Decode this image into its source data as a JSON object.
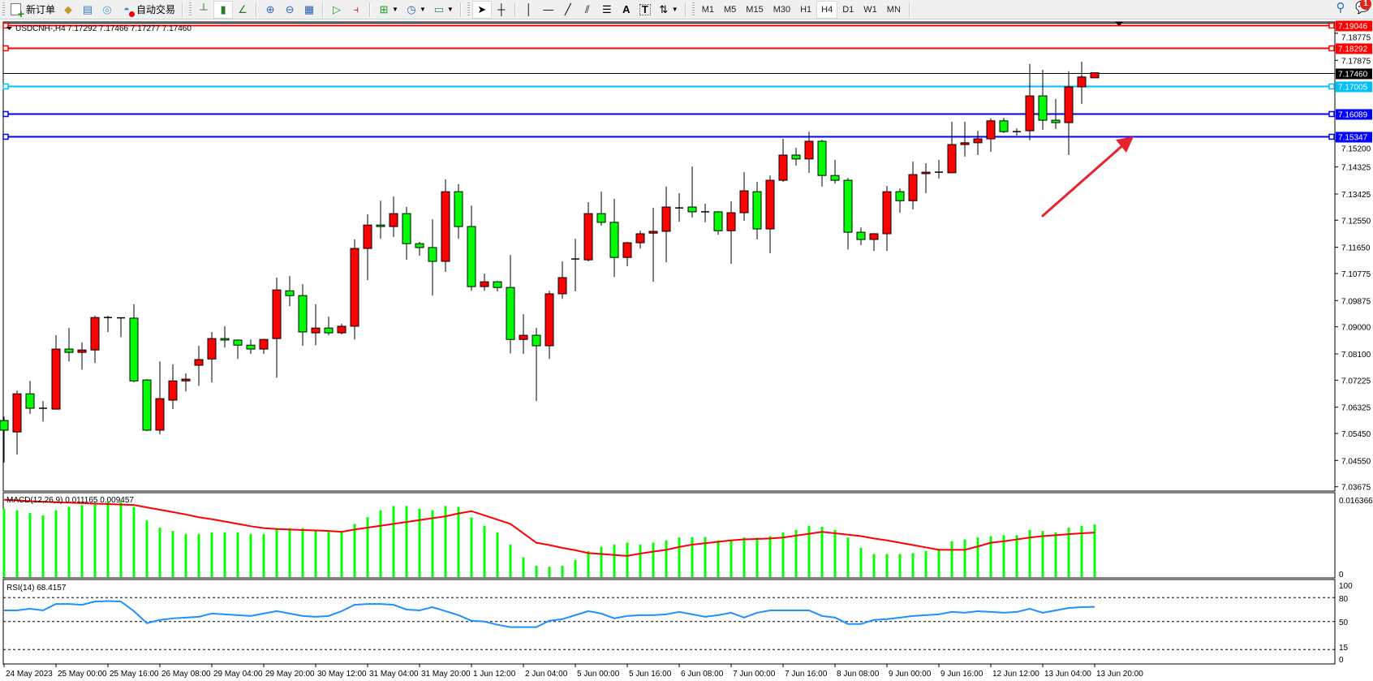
{
  "toolbar": {
    "new_order_label": "新订单",
    "autotrading_label": "自动交易",
    "timeframes": [
      "M1",
      "M5",
      "M15",
      "M30",
      "H1",
      "H4",
      "D1",
      "W1",
      "MN"
    ],
    "active_timeframe": "H4",
    "notification_count": "1"
  },
  "chart": {
    "symbol_header": "USDCNH-,H4",
    "ohlc_header": "7.17292 7.17466 7.17277 7.17460",
    "colors": {
      "bull": "#ff0000",
      "bear": "#00ff00",
      "bid_line": "#000000"
    },
    "price_ticks": [
      "7.18775",
      "7.17875",
      "7.15200",
      "7.14325",
      "7.13425",
      "7.12550",
      "7.11650",
      "7.10775",
      "7.09875",
      "7.09000",
      "7.08100",
      "7.07225",
      "7.06325",
      "7.05450",
      "7.04550",
      "7.03675"
    ],
    "hlines": [
      {
        "price": "7.19046",
        "color": "#ff0000"
      },
      {
        "price": "7.18292",
        "color": "#ff0000"
      },
      {
        "price": "7.17460",
        "color": "#000000"
      },
      {
        "price": "7.17005",
        "color": "#00bfff"
      },
      {
        "price": "7.16089",
        "color": "#0000ff"
      },
      {
        "price": "7.15347",
        "color": "#0000ff"
      }
    ],
    "annotation_arrow": {
      "color": "#e8222a",
      "from_price": 7.1435,
      "to_price": 7.1534
    },
    "time_labels": [
      "24 May 2023",
      "25 May 00:00",
      "25 May 16:00",
      "26 May 08:00",
      "29 May 04:00",
      "29 May 20:00",
      "30 May 12:00",
      "31 May 04:00",
      "31 May 20:00",
      "1 Jun 12:00",
      "2 Jun 04:00",
      "5 Jun 00:00",
      "5 Jun 16:00",
      "6 Jun 08:00",
      "7 Jun 00:00",
      "7 Jun 16:00",
      "8 Jun 08:00",
      "9 Jun 00:00",
      "9 Jun 16:00",
      "12 Jun 12:00",
      "13 Jun 04:00",
      "13 Jun 20:00"
    ]
  },
  "macd": {
    "label": "MACD(12,26,9) 0.011165 0.009457",
    "axis_max": "0.016366",
    "axis_zero": "0"
  },
  "rsi": {
    "label": "RSI(14) 68.4157",
    "levels": [
      "100",
      "80",
      "50",
      "15",
      "0"
    ]
  },
  "chart_data": [
    {
      "type": "candlestick",
      "title": "USDCNH-,H4",
      "ylim": [
        7.03675,
        7.19046
      ],
      "ohlc": [
        [
          7.0588,
          7.0601,
          7.0448,
          7.0556
        ],
        [
          7.055,
          7.0688,
          7.0475,
          7.0677
        ],
        [
          7.0677,
          7.072,
          7.061,
          7.0629
        ],
        [
          7.0629,
          7.0653,
          7.0585,
          7.0628
        ],
        [
          7.0626,
          7.0872,
          7.0626,
          7.0826
        ],
        [
          7.0826,
          7.0896,
          7.0785,
          7.0815
        ],
        [
          7.0815,
          7.0848,
          7.0758,
          7.0823
        ],
        [
          7.0823,
          7.0937,
          7.078,
          7.0931
        ],
        [
          7.0931,
          7.0937,
          7.0883,
          7.0931
        ],
        [
          7.093,
          7.0931,
          7.0866,
          7.0929
        ],
        [
          7.0929,
          7.0975,
          7.0715,
          7.072
        ],
        [
          7.0723,
          7.0726,
          7.0553,
          7.0556
        ],
        [
          7.0556,
          7.0785,
          7.0542,
          7.0661
        ],
        [
          7.0656,
          7.0775,
          7.0626,
          7.072
        ],
        [
          7.072,
          7.0745,
          7.0685,
          7.0726
        ],
        [
          7.0772,
          7.0837,
          7.0704,
          7.0791
        ],
        [
          7.0793,
          7.0883,
          7.0715,
          7.0861
        ],
        [
          7.0861,
          7.0902,
          7.0831,
          7.0856
        ],
        [
          7.0856,
          7.0858,
          7.0793,
          7.0839
        ],
        [
          7.0839,
          7.0858,
          7.081,
          7.0826
        ],
        [
          7.0826,
          7.0861,
          7.081,
          7.0858
        ],
        [
          7.0861,
          7.1064,
          7.0731,
          7.1023
        ],
        [
          7.102,
          7.1069,
          7.0969,
          7.1004
        ],
        [
          7.1004,
          7.1042,
          7.0837,
          7.0883
        ],
        [
          7.088,
          7.0975,
          7.0839,
          7.0896
        ],
        [
          7.0896,
          7.0934,
          7.0872,
          7.088
        ],
        [
          7.088,
          7.091,
          7.0875,
          7.0902
        ],
        [
          7.0902,
          7.1191,
          7.0858,
          7.1161
        ],
        [
          7.1161,
          7.1275,
          7.1056,
          7.1239
        ],
        [
          7.1239,
          7.132,
          7.1193,
          7.1234
        ],
        [
          7.1234,
          7.1334,
          7.1199,
          7.1277
        ],
        [
          7.1277,
          7.1299,
          7.1123,
          7.1177
        ],
        [
          7.1177,
          7.1183,
          7.1137,
          7.1164
        ],
        [
          7.1164,
          7.1258,
          7.1004,
          7.1118
        ],
        [
          7.1118,
          7.1391,
          7.1083,
          7.135
        ],
        [
          7.135,
          7.1375,
          7.1193,
          7.1234
        ],
        [
          7.1234,
          7.1304,
          7.102,
          7.1034
        ],
        [
          7.1034,
          7.1077,
          7.102,
          7.105
        ],
        [
          7.105,
          7.1053,
          7.1018,
          7.1031
        ],
        [
          7.1031,
          7.1139,
          7.0812,
          7.0858
        ],
        [
          7.0858,
          7.0942,
          7.081,
          7.0872
        ],
        [
          7.0872,
          7.0896,
          7.0653,
          7.0837
        ],
        [
          7.0837,
          7.102,
          7.0793,
          7.101
        ],
        [
          7.101,
          7.1118,
          7.0993,
          7.1064
        ],
        [
          7.1123,
          7.1193,
          7.1018,
          7.1126
        ],
        [
          7.1123,
          7.1315,
          7.1118,
          7.1277
        ],
        [
          7.1277,
          7.135,
          7.1237,
          7.1248
        ],
        [
          7.1248,
          7.1326,
          7.1066,
          7.1131
        ],
        [
          7.1131,
          7.1183,
          7.1102,
          7.118
        ],
        [
          7.118,
          7.122,
          7.1161,
          7.121
        ],
        [
          7.1212,
          7.1296,
          7.105,
          7.1218
        ],
        [
          7.1218,
          7.1367,
          7.1115,
          7.1299
        ],
        [
          7.1296,
          7.1345,
          7.125,
          7.1296
        ],
        [
          7.1299,
          7.1434,
          7.1264,
          7.1283
        ],
        [
          7.1283,
          7.131,
          7.1248,
          7.1283
        ],
        [
          7.1283,
          7.1285,
          7.1207,
          7.122
        ],
        [
          7.122,
          7.1318,
          7.111,
          7.128
        ],
        [
          7.128,
          7.1415,
          7.1253,
          7.1353
        ],
        [
          7.135,
          7.1383,
          7.1191,
          7.1226
        ],
        [
          7.1226,
          7.1404,
          7.1145,
          7.1388
        ],
        [
          7.1388,
          7.1526,
          7.1383,
          7.1472
        ],
        [
          7.1472,
          7.1496,
          7.1437,
          7.1459
        ],
        [
          7.1459,
          7.155,
          7.1413,
          7.1518
        ],
        [
          7.1518,
          7.1523,
          7.1367,
          7.1404
        ],
        [
          7.1404,
          7.1456,
          7.1377,
          7.1388
        ],
        [
          7.1388,
          7.1396,
          7.1158,
          7.1215
        ],
        [
          7.1215,
          7.1231,
          7.1172,
          7.1191
        ],
        [
          7.1191,
          7.1212,
          7.1153,
          7.121
        ],
        [
          7.121,
          7.1369,
          7.1153,
          7.135
        ],
        [
          7.135,
          7.1361,
          7.128,
          7.132
        ],
        [
          7.132,
          7.145,
          7.1291,
          7.1407
        ],
        [
          7.141,
          7.1445,
          7.1345,
          7.1415
        ],
        [
          7.1415,
          7.1456,
          7.1394,
          7.1415
        ],
        [
          7.1413,
          7.1583,
          7.1413,
          7.1507
        ],
        [
          7.1507,
          7.1583,
          7.1467,
          7.1513
        ],
        [
          7.1513,
          7.1553,
          7.1472,
          7.1526
        ],
        [
          7.1526,
          7.1594,
          7.1483,
          7.1586
        ],
        [
          7.1586,
          7.1596,
          7.1545,
          7.155
        ],
        [
          7.155,
          7.1561,
          7.1537,
          7.155
        ],
        [
          7.1553,
          7.1775,
          7.1521,
          7.1669
        ],
        [
          7.1669,
          7.1756,
          7.1556,
          7.1588
        ],
        [
          7.1588,
          7.1659,
          7.1559,
          7.158
        ],
        [
          7.158,
          7.1751,
          7.1472,
          7.1699
        ],
        [
          7.1699,
          7.1783,
          7.1642,
          7.1732
        ],
        [
          7.17292,
          7.17466,
          7.17277,
          7.1746
        ]
      ]
    },
    {
      "type": "bar+line",
      "title": "MACD(12,26,9)",
      "ylim": [
        0,
        0.016366
      ],
      "histogram": [
        0.0145,
        0.0142,
        0.0136,
        0.0131,
        0.0142,
        0.0149,
        0.0153,
        0.0156,
        0.016,
        0.016,
        0.0149,
        0.012,
        0.0105,
        0.0098,
        0.0091,
        0.0091,
        0.0095,
        0.0095,
        0.0095,
        0.0091,
        0.0091,
        0.0104,
        0.0104,
        0.0104,
        0.01,
        0.0096,
        0.0098,
        0.0113,
        0.0127,
        0.0142,
        0.0151,
        0.0151,
        0.0145,
        0.0142,
        0.0151,
        0.0149,
        0.0127,
        0.0109,
        0.0095,
        0.0069,
        0.0042,
        0.0024,
        0.0022,
        0.0024,
        0.0036,
        0.0055,
        0.0064,
        0.0069,
        0.0073,
        0.0069,
        0.0073,
        0.0078,
        0.0084,
        0.0085,
        0.0085,
        0.0078,
        0.0078,
        0.0084,
        0.0084,
        0.0087,
        0.0095,
        0.01,
        0.0109,
        0.0107,
        0.01,
        0.0084,
        0.0062,
        0.0049,
        0.0049,
        0.0049,
        0.0051,
        0.0055,
        0.006,
        0.0076,
        0.008,
        0.0084,
        0.0087,
        0.0089,
        0.0089,
        0.01,
        0.0098,
        0.0095,
        0.0105,
        0.0109,
        0.011165
      ],
      "signal": [
        0.0164,
        0.0163,
        0.0161,
        0.016,
        0.0159,
        0.0158,
        0.0157,
        0.0156,
        0.0155,
        0.0154,
        0.0153,
        0.0148,
        0.0143,
        0.0138,
        0.0133,
        0.0127,
        0.0123,
        0.0118,
        0.0113,
        0.0108,
        0.0104,
        0.0102,
        0.0101,
        0.01,
        0.0099,
        0.0098,
        0.0096,
        0.0101,
        0.0105,
        0.0109,
        0.0113,
        0.0117,
        0.0121,
        0.0125,
        0.0129,
        0.0135,
        0.014,
        0.0131,
        0.0122,
        0.0113,
        0.0093,
        0.0073,
        0.0068,
        0.0062,
        0.0057,
        0.0051,
        0.0049,
        0.0047,
        0.0045,
        0.005,
        0.0054,
        0.0058,
        0.0064,
        0.0069,
        0.0072,
        0.0075,
        0.0078,
        0.008,
        0.0081,
        0.0082,
        0.0084,
        0.0088,
        0.0092,
        0.0096,
        0.0093,
        0.009,
        0.0087,
        0.0082,
        0.0078,
        0.0073,
        0.0068,
        0.0063,
        0.0058,
        0.0058,
        0.0058,
        0.0065,
        0.0073,
        0.0076,
        0.008,
        0.0084,
        0.0087,
        0.0089,
        0.0091,
        0.0093,
        0.009457
      ],
      "colors": {
        "histogram": "#00ff00",
        "signal": "#ff0000"
      }
    },
    {
      "type": "line",
      "title": "RSI(14)",
      "ylim": [
        0,
        100
      ],
      "levels": [
        80,
        50,
        15
      ],
      "values": [
        64,
        64,
        66,
        64,
        72,
        72,
        71,
        75,
        75.6,
        75,
        63,
        48,
        52,
        54,
        55,
        56,
        60,
        59,
        58,
        57,
        60,
        63,
        60,
        57,
        56,
        57,
        63,
        71,
        72,
        72,
        71,
        65,
        64,
        68,
        63,
        58,
        51,
        50,
        46,
        43,
        43,
        43,
        51,
        53,
        58,
        63,
        60,
        54,
        57,
        58,
        58,
        59,
        62,
        59,
        56,
        58,
        61,
        55,
        61,
        64,
        64,
        64,
        64,
        57,
        55,
        47,
        47,
        52,
        53,
        55,
        57,
        58,
        59,
        62,
        61,
        63,
        62,
        61,
        62,
        66,
        61,
        64,
        67,
        68,
        68.4157
      ],
      "color": "#1e90ff"
    }
  ]
}
